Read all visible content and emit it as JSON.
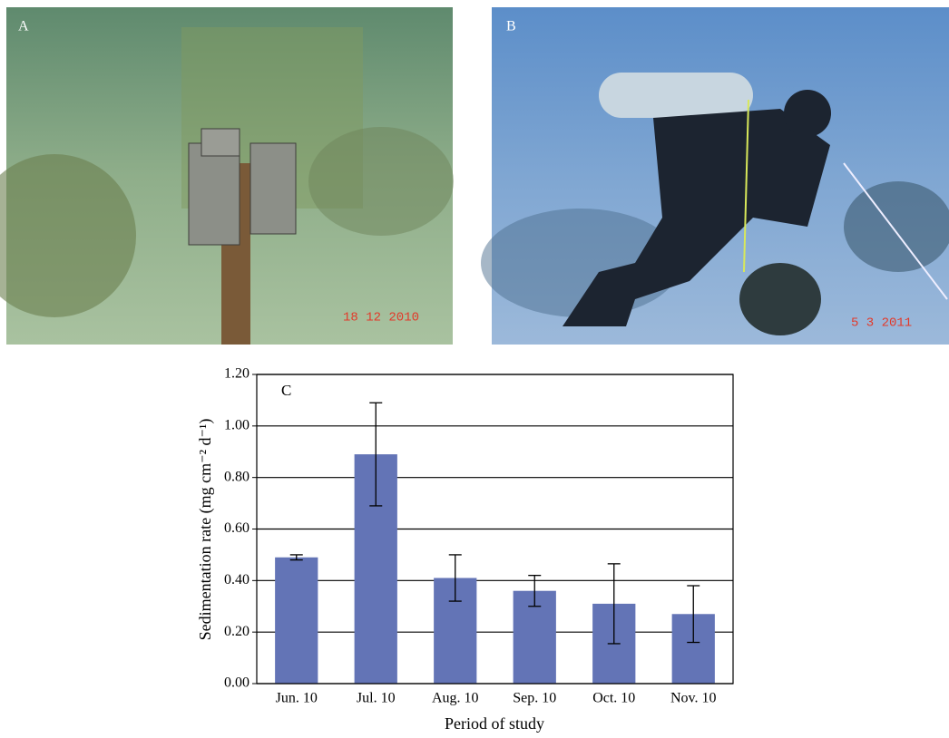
{
  "photos": [
    {
      "label": "A",
      "date": "18 12 2010"
    },
    {
      "label": "B",
      "date": "5 3 2011"
    }
  ],
  "chart_data": {
    "type": "bar",
    "panel_label": "C",
    "x_label": "Period of study",
    "y_label": "Sedimentation rate (mg cm⁻² d⁻¹)",
    "categories": [
      "Jun. 10",
      "Jul. 10",
      "Aug. 10",
      "Sep. 10",
      "Oct. 10",
      "Nov. 10"
    ],
    "values": [
      0.49,
      0.89,
      0.41,
      0.36,
      0.31,
      0.27
    ],
    "errors": [
      0.01,
      0.2,
      0.09,
      0.06,
      0.155,
      0.11
    ],
    "color": "#6374b6",
    "ylim": [
      0,
      1.2
    ],
    "yticks": [
      {
        "value": 0,
        "label": "0.00"
      },
      {
        "value": 0.2,
        "label": "0.20"
      },
      {
        "value": 0.4,
        "label": "0.40"
      },
      {
        "value": 0.6,
        "label": "0.60"
      },
      {
        "value": 0.8,
        "label": "0.80"
      },
      {
        "value": 1,
        "label": "1.00"
      },
      {
        "value": 1.2,
        "label": "1.20"
      }
    ],
    "grid": true
  }
}
